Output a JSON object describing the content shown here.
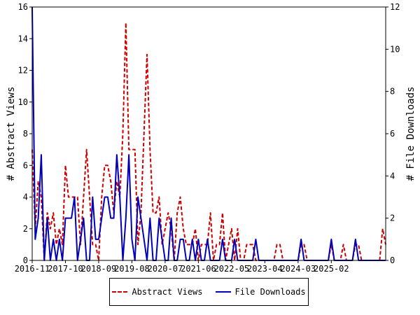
{
  "chart_data": {
    "type": "line",
    "title": "",
    "xlabel": "",
    "ylabel_left": "# Abstract Views",
    "ylabel_right": "# File Downloads",
    "ylim_left": [
      0,
      16
    ],
    "ylim_right": [
      0,
      12
    ],
    "yticks_left": [
      "0",
      "2",
      "4",
      "6",
      "8",
      "10",
      "12",
      "14",
      "16"
    ],
    "yticks_right": [
      "0",
      "2",
      "4",
      "6",
      "8",
      "10",
      "12"
    ],
    "x_start": "2016-11",
    "months_count": 118,
    "xtick_labels": [
      "2016-11",
      "2017-10",
      "2018-09",
      "2019-08",
      "2020-07",
      "2021-06",
      "2022-05",
      "2023-04",
      "2024-03",
      "2025-02"
    ],
    "grid": false,
    "legend_position": "bottom",
    "series": [
      {
        "name": "Abstract Views",
        "axis": "left",
        "color": "#cc0000",
        "style": "dashed",
        "values": [
          7,
          2,
          5,
          4,
          0,
          3,
          2,
          3,
          1,
          2,
          1,
          6,
          4,
          4,
          4,
          4,
          1,
          4,
          7,
          4,
          1,
          1,
          0,
          4,
          6,
          6,
          5,
          3,
          5,
          4,
          8,
          15,
          7,
          7,
          7,
          1,
          3,
          8,
          13,
          7,
          3,
          3,
          4,
          1,
          2,
          3,
          2,
          0,
          3,
          4,
          2,
          1,
          1,
          1,
          2,
          0,
          1,
          1,
          1,
          3,
          0,
          1,
          1,
          3,
          0,
          1,
          2,
          0,
          2,
          0,
          0,
          1,
          1,
          1,
          0,
          0,
          0,
          0,
          0,
          0,
          0,
          1,
          1,
          0,
          0,
          0,
          0,
          0,
          0,
          1,
          1,
          0,
          0,
          0,
          0,
          0,
          0,
          0,
          0,
          1,
          0,
          0,
          0,
          1,
          0,
          0,
          0,
          1,
          1,
          0,
          0,
          0,
          0,
          0,
          0,
          0,
          2,
          1
        ]
      },
      {
        "name": "File Downloads",
        "axis": "right",
        "color": "#0000bb",
        "style": "solid",
        "values": [
          12,
          1,
          2,
          5,
          0,
          2,
          0,
          1,
          0,
          1,
          0,
          2,
          2,
          2,
          3,
          0,
          1,
          2,
          0,
          0,
          3,
          1,
          1,
          2,
          3,
          3,
          2,
          2,
          5,
          3,
          0,
          2,
          5,
          1,
          0,
          3,
          2,
          1,
          0,
          2,
          0,
          0,
          2,
          1,
          0,
          0,
          2,
          0,
          0,
          1,
          1,
          0,
          0,
          1,
          0,
          1,
          0,
          0,
          1,
          0,
          0,
          0,
          0,
          1,
          0,
          0,
          0,
          1,
          0,
          0,
          0,
          0,
          0,
          0,
          1,
          0,
          0,
          0,
          0,
          0,
          0,
          0,
          0,
          0,
          0,
          0,
          0,
          0,
          0,
          1,
          0,
          0,
          0,
          0,
          0,
          0,
          0,
          0,
          0,
          1,
          0,
          0,
          0,
          0,
          0,
          0,
          0,
          1,
          0,
          0,
          0,
          0,
          0,
          0,
          0,
          0,
          0,
          0
        ]
      }
    ]
  }
}
